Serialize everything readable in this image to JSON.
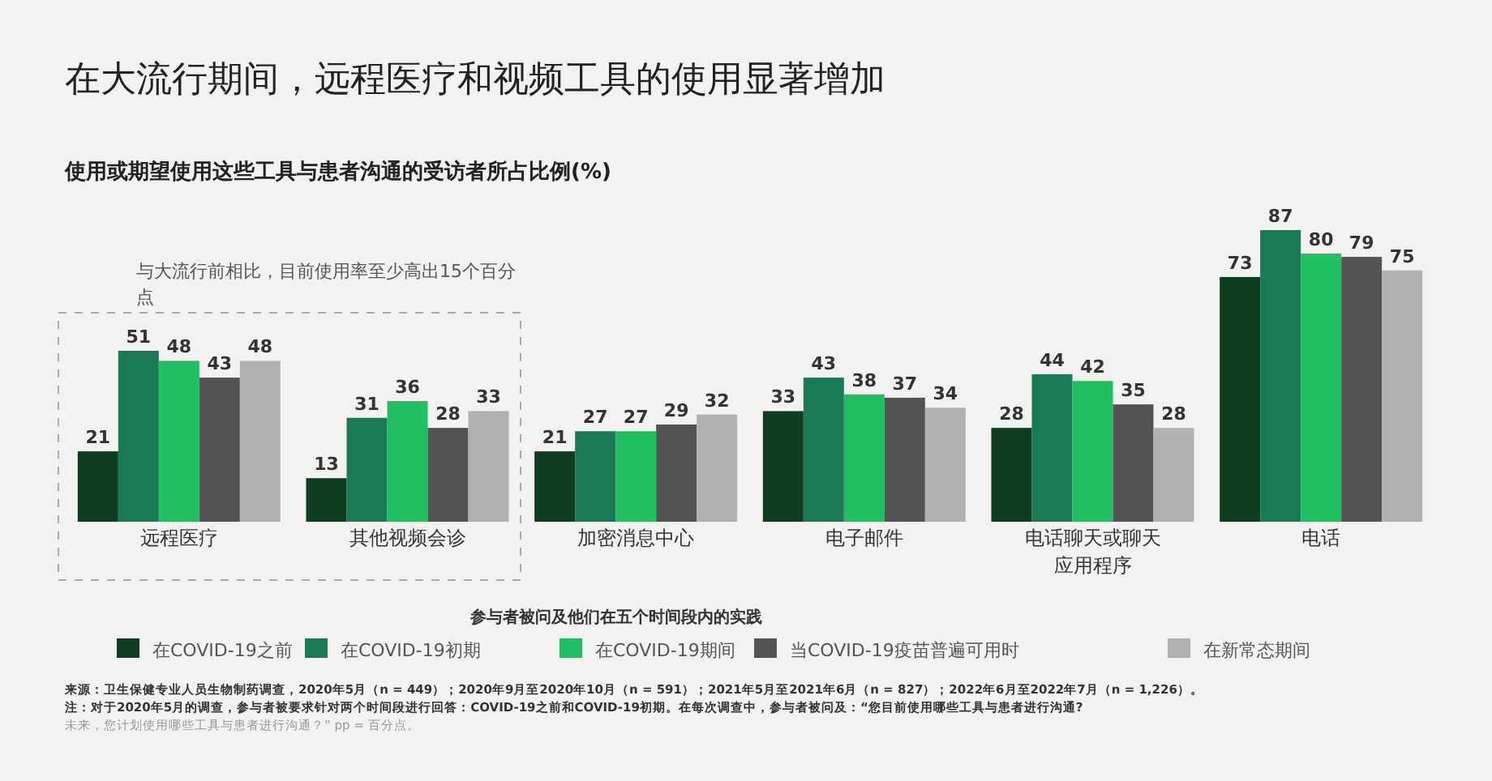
{
  "chart_data": {
    "type": "bar",
    "title": "在大流行期间，远程医疗和视频工具的使用显著增加",
    "subtitle": "使用或期望使用这些工具与患者沟通的受访者所占比例(%)",
    "categories": [
      "远程医疗",
      "其他视频会诊",
      "加密消息中心",
      "电子邮件",
      "电话聊天或聊天应用程序",
      "电话"
    ],
    "series": [
      {
        "name": "在COVID-19之前",
        "color": "#0e3d1f",
        "values": [
          21,
          13,
          21,
          33,
          28,
          73
        ]
      },
      {
        "name": "在COVID-19初期",
        "color": "#197a56",
        "values": [
          51,
          31,
          27,
          43,
          44,
          87
        ]
      },
      {
        "name": "在COVID-19期间",
        "color": "#21bf61",
        "values": [
          48,
          36,
          27,
          38,
          42,
          80
        ]
      },
      {
        "name": "当COVID-19疫苗普遍可用时",
        "color": "#535353",
        "values": [
          43,
          28,
          29,
          37,
          35,
          79
        ]
      },
      {
        "name": "在新常态期间",
        "color": "#b1b1b1",
        "values": [
          48,
          33,
          32,
          34,
          28,
          75
        ]
      }
    ],
    "data_labels": true,
    "legend": "bottom",
    "legend_title": "参与者被问及他们在五个时间段内的实践",
    "annotations": [
      {
        "text": "与大流行前相比，目前使用率至少高出15个百分点"
      },
      "来源：卫生保健专业人员生物制药调查，2020年5月（n = 449）；2020年9月至2020年10月（n = 591）；2021年5月至2021年6月（n = 827）；2022年6月至2022年7月（n = 1,226）。",
      "注：对于2020年5月的调查，参与者被要求针对两个时间段进行回答：COVID-19之前和COVID-19初期。在每次调查中，参与者被问及：“您目前使用哪些工具与患者进行沟通?",
      "未来，您计划使用哪些工具与患者进行沟通？” pp = 百分点。"
    ]
  }
}
